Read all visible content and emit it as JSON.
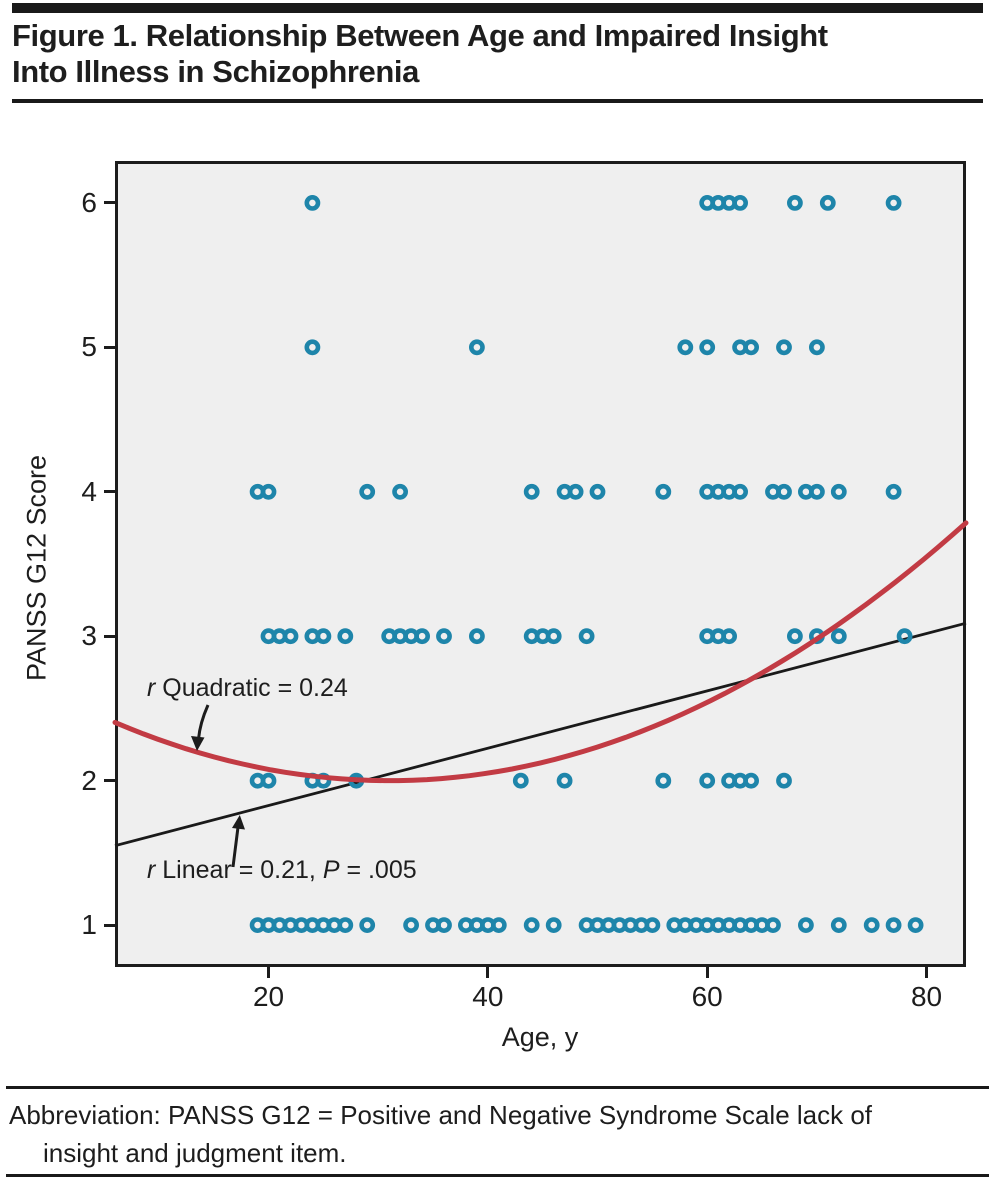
{
  "title": {
    "line1": "Figure 1. Relationship Between Age and Impaired Insight",
    "line2": "Into Illness in Schizophrenia"
  },
  "axis": {
    "x_title": "Age, y",
    "y_title": "PANSS G12 Score"
  },
  "annotations": {
    "quadratic": {
      "r": "r",
      "rest": " Quadratic = 0.24"
    },
    "linear": {
      "r": "r",
      "mid": " Linear = 0.21, ",
      "p": "P",
      "rest": " = .005"
    }
  },
  "footer": {
    "line1": "Abbreviation: PANSS G12 = Positive and Negative Syndrome Scale lack of",
    "line2": "insight and judgment item."
  },
  "chart_data": {
    "type": "scatter",
    "title": "Figure 1. Relationship Between Age and Impaired Insight Into Illness in Schizophrenia",
    "xlabel": "Age, y",
    "ylabel": "PANSS G12 Score",
    "xlim": [
      6,
      83.6
    ],
    "ylim": [
      0.71,
      6.29
    ],
    "xticks": [
      20,
      40,
      60,
      80
    ],
    "yticks": [
      1,
      2,
      3,
      4,
      5,
      6
    ],
    "grid": false,
    "plot_background": "#efefef",
    "point_color": "#1e85aa",
    "series": [
      {
        "name": "PANSS G12 score by age",
        "marker": "open-circle",
        "rows": [
          {
            "score": 6,
            "ages": [
              24,
              60,
              61,
              62,
              63,
              68,
              71,
              77
            ]
          },
          {
            "score": 5,
            "ages": [
              24,
              39,
              58,
              60,
              63,
              64,
              67,
              70
            ]
          },
          {
            "score": 4,
            "ages": [
              19,
              20,
              29,
              32,
              44,
              47,
              48,
              50,
              56,
              60,
              61,
              62,
              63,
              66,
              67,
              69,
              70,
              72,
              77
            ]
          },
          {
            "score": 3,
            "ages": [
              20,
              21,
              22,
              24,
              25,
              27,
              31,
              32,
              33,
              34,
              36,
              39,
              44,
              45,
              46,
              49,
              60,
              61,
              62,
              68,
              70,
              72,
              78
            ]
          },
          {
            "score": 2,
            "ages": [
              19,
              20,
              24,
              25,
              28,
              43,
              47,
              56,
              60,
              62,
              63,
              64,
              67
            ]
          },
          {
            "score": 1,
            "ages": [
              19,
              20,
              21,
              22,
              23,
              24,
              25,
              26,
              27,
              29,
              33,
              35,
              36,
              38,
              39,
              40,
              41,
              44,
              46,
              49,
              50,
              51,
              52,
              53,
              54,
              55,
              57,
              58,
              59,
              60,
              61,
              62,
              63,
              64,
              65,
              66,
              69,
              72,
              75,
              77,
              79
            ]
          }
        ]
      }
    ],
    "fits": [
      {
        "kind": "quadratic",
        "label": "r Quadratic = 0.24",
        "r": 0.24,
        "color": "#c23b44",
        "vertex_age": 31,
        "vertex_score": 2.0,
        "a": 0.000645
      },
      {
        "kind": "linear",
        "label": "r Linear = 0.21, P = .005",
        "r": 0.21,
        "p": ".005",
        "color": "#1a1a1a",
        "age_start": 6,
        "score_start": 1.55,
        "age_end": 83.6,
        "score_end": 3.09
      }
    ]
  }
}
